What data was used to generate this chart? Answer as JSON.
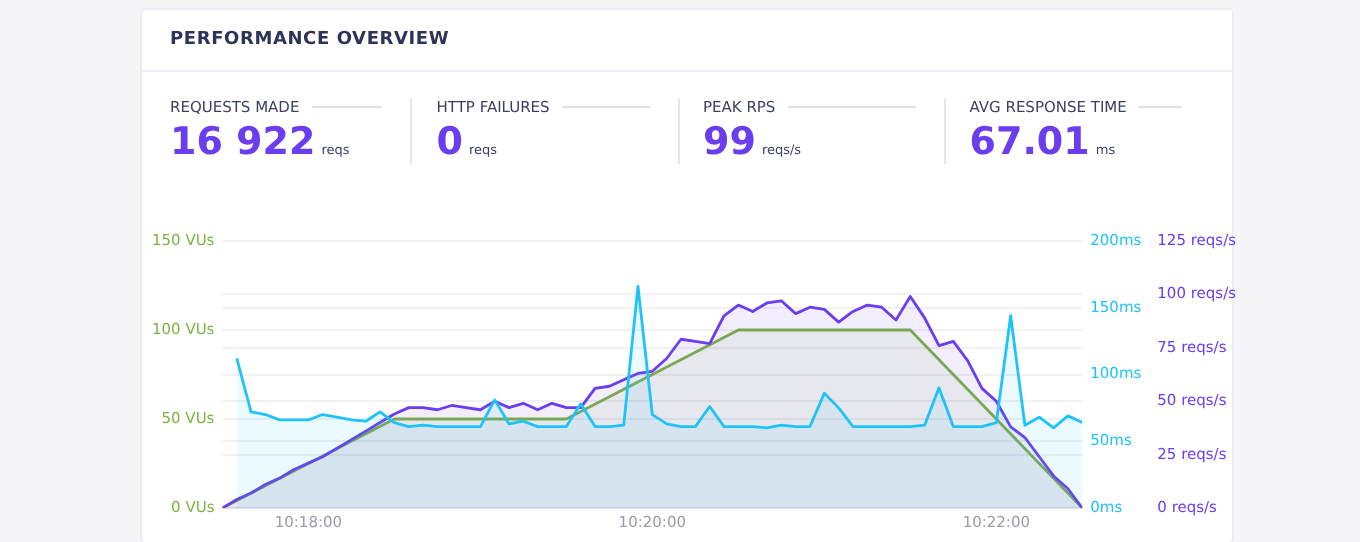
{
  "chart_data": [
    {
      "type": "other",
      "title": "PERFORMANCE OVERVIEW",
      "annotations": [
        "REQUESTS MADE",
        "16 922",
        "reqs",
        "HTTP FAILURES",
        "0",
        "reqs",
        "PEAK RPS",
        "99",
        "reqs/s",
        "AVG RESPONSE TIME",
        "67.01",
        "ms"
      ]
    },
    {
      "type": "area",
      "x": [
        10.29167,
        10.29306,
        10.29444,
        10.29583,
        10.29722,
        10.29861,
        10.3,
        10.30139,
        10.30278,
        10.30417,
        10.30556,
        10.30694,
        10.30833,
        10.30972,
        10.31111,
        10.3125,
        10.31389,
        10.31528,
        10.31667,
        10.31806,
        10.31944,
        10.32083,
        10.32222,
        10.32361,
        10.325,
        10.32639,
        10.32778,
        10.32917,
        10.33056,
        10.33194,
        10.33333,
        10.33472,
        10.33611,
        10.3375,
        10.33889,
        10.34028,
        10.34167,
        10.34306,
        10.34444,
        10.34583,
        10.34722,
        10.34861,
        10.35,
        10.35139,
        10.35278,
        10.35417,
        10.35556,
        10.35694,
        10.35833,
        10.35972,
        10.36111,
        10.3625,
        10.36389,
        10.36528,
        10.36667,
        10.36806,
        10.36944,
        10.37083,
        10.37222,
        10.37361,
        10.375
      ],
      "xlim": [
        10.29167,
        10.375
      ],
      "xticks": [
        {
          "value": 10.3,
          "label": "10:18:00"
        },
        {
          "value": 10.33333,
          "label": "10:20:00"
        },
        {
          "value": 10.36667,
          "label": "10:22:00"
        }
      ],
      "ylim": [
        0,
        150
      ],
      "yticks": [
        {
          "value": 0,
          "label": "0 VUs"
        },
        {
          "value": 50,
          "label": "50 VUs"
        },
        {
          "value": 100,
          "label": "100 VUs"
        },
        {
          "value": 150,
          "label": "150 VUs"
        }
      ],
      "y2lim": [
        0,
        200
      ],
      "y2ticks": [
        {
          "value": 0,
          "label": "0ms"
        },
        {
          "value": 50,
          "label": "50ms"
        },
        {
          "value": 100,
          "label": "100ms"
        },
        {
          "value": 150,
          "label": "150ms"
        },
        {
          "value": 200,
          "label": "200ms"
        }
      ],
      "y3lim": [
        0,
        125
      ],
      "y3ticks": [
        {
          "value": 0,
          "label": "0 reqs/s"
        },
        {
          "value": 25,
          "label": "25 reqs/s"
        },
        {
          "value": 50,
          "label": "50 reqs/s"
        },
        {
          "value": 75,
          "label": "75 reqs/s"
        },
        {
          "value": 100,
          "label": "100 reqs/s"
        },
        {
          "value": 125,
          "label": "125 reqs/s"
        }
      ],
      "grid": "y",
      "legend": false,
      "marker": "none",
      "line_style": "solid",
      "series": [
        {
          "color": "#7cb342",
          "axis": "y",
          "x": [
            10.29167,
            10.30833,
            10.325,
            10.34167,
            10.35833,
            10.375
          ],
          "values": [
            0,
            50,
            50,
            100,
            100,
            0
          ]
        },
        {
          "color": "#6a3df0",
          "axis": "y3",
          "values": [
            0,
            4,
            7,
            11,
            14,
            18,
            21,
            24,
            28,
            32,
            36,
            40,
            44,
            47,
            47,
            46,
            48,
            47,
            46,
            50,
            47,
            49,
            46,
            49,
            47,
            47,
            56,
            57,
            60,
            63,
            64,
            70,
            79,
            78,
            77,
            90,
            95,
            92,
            96,
            97,
            91,
            94,
            93,
            87,
            92,
            95,
            94,
            88,
            99,
            89,
            76,
            78,
            69,
            56,
            50,
            38,
            33,
            24,
            15,
            9,
            0
          ]
        },
        {
          "color": "#1ec4f7",
          "axis": "y2",
          "values": [
            null,
            112,
            72,
            70,
            66,
            66,
            66,
            70,
            68,
            66,
            65,
            72,
            64,
            61,
            62,
            61,
            61,
            61,
            61,
            81,
            63,
            65,
            61,
            61,
            61,
            78,
            61,
            61,
            62,
            166,
            70,
            63,
            61,
            61,
            76,
            61,
            61,
            61,
            60,
            62,
            61,
            61,
            86,
            75,
            61,
            61,
            61,
            61,
            61,
            62,
            90,
            61,
            61,
            61,
            64,
            144,
            62,
            68,
            60,
            69,
            64
          ]
        }
      ]
    }
  ]
}
